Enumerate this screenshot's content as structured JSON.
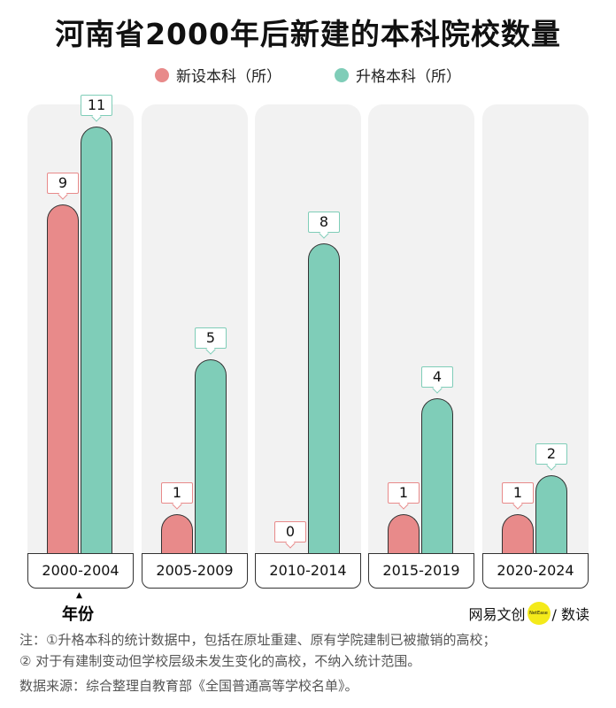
{
  "chart_data": {
    "type": "bar",
    "title": "河南省2000年后新建的本科院校数量",
    "xlabel": "年份",
    "categories": [
      "2000-2004",
      "2005-2009",
      "2010-2014",
      "2015-2019",
      "2020-2024"
    ],
    "series": [
      {
        "name": "新设本科（所）",
        "color": "#e88a8a",
        "values": [
          9,
          1,
          0,
          1,
          1
        ]
      },
      {
        "name": "升格本科（所）",
        "color": "#7fcdb8",
        "values": [
          11,
          5,
          8,
          4,
          2
        ]
      }
    ],
    "legend": "top",
    "grid": false
  },
  "brand": {
    "left": "网易文创",
    "logo": "NetEase",
    "right": "/ 数读"
  },
  "notes": [
    "注：①升格本科的统计数据中，包括在原址重建、原有学院建制已被撤销的高校；",
    "② 对于有建制变动但学校层级未发生变化的高校，不纳入统计范围。"
  ],
  "source": "数据来源：综合整理自教育部《全国普通高等学校名单》。"
}
